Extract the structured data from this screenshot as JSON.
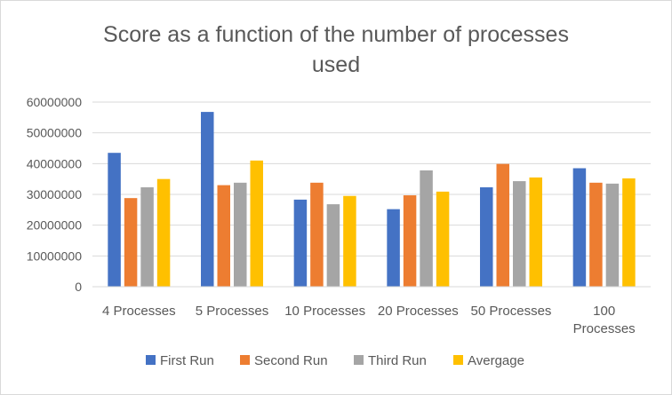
{
  "chart_data": {
    "type": "bar",
    "title_lines": [
      "Score as a function of the number of processes",
      "used"
    ],
    "categories": [
      [
        "4 Processes"
      ],
      [
        "5 Processes"
      ],
      [
        "10 Processes"
      ],
      [
        "20 Processes"
      ],
      [
        "50 Processes"
      ],
      [
        "100",
        "Processes"
      ]
    ],
    "series": [
      {
        "name": "First Run",
        "color": "#4472c4",
        "values": [
          43500000,
          56800000,
          28300000,
          25200000,
          32300000,
          38500000
        ]
      },
      {
        "name": "Second Run",
        "color": "#ed7d31",
        "values": [
          28800000,
          33000000,
          33800000,
          29700000,
          39900000,
          33800000
        ]
      },
      {
        "name": "Third Run",
        "color": "#a5a5a5",
        "values": [
          32300000,
          33800000,
          26800000,
          37800000,
          34300000,
          33500000
        ]
      },
      {
        "name": "Avergage",
        "color": "#ffc000",
        "values": [
          35000000,
          41000000,
          29500000,
          30900000,
          35500000,
          35200000
        ]
      }
    ],
    "ylim": [
      0,
      60000000
    ],
    "yticks": [
      "0",
      "10000000",
      "20000000",
      "30000000",
      "40000000",
      "50000000",
      "60000000"
    ],
    "grid": true,
    "legend_position": "bottom"
  }
}
